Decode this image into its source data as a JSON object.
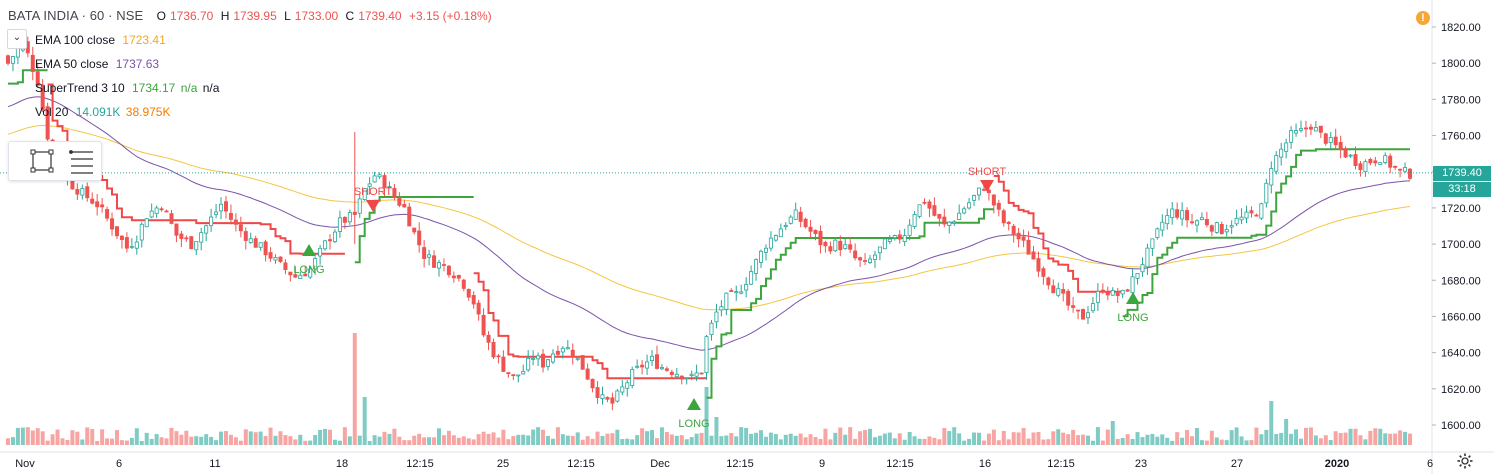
{
  "header": {
    "symbol": "BATA INDIA · 60 · NSE",
    "open_label": "O",
    "open": "1736.70",
    "high_label": "H",
    "high": "1739.95",
    "low_label": "L",
    "low": "1733.00",
    "close_label": "C",
    "close": "1739.40",
    "change": "+3.15 (+0.18%)"
  },
  "indicators": [
    {
      "name": "EMA 100 close",
      "value": "1723.41",
      "color": "#f5a623"
    },
    {
      "name": "EMA 50 close",
      "value": "1737.63",
      "color": "#7b52ab"
    },
    {
      "name": "SuperTrend 3 10",
      "value": "1734.17",
      "extra1": "n/a",
      "extra2": "n/a",
      "color": "#3da53d"
    },
    {
      "name": "Vol 20",
      "value": "14.091K",
      "extra1": "38.975K",
      "color": "#26a69a",
      "color2": "#f57c00"
    }
  ],
  "price_tag": {
    "value": "1739.40",
    "countdown": "33:18"
  },
  "colors": {
    "up": "#26a69a",
    "down": "#ef5350",
    "candle_up_fill": "#ffffff",
    "supertrend_up": "#3da53d",
    "supertrend_down": "#f04848",
    "ema100": "#f5c542",
    "ema50": "#7b52ab",
    "vol_up": "#80cbc4",
    "vol_down": "#f6a5a2"
  },
  "chart_data": {
    "type": "candlestick",
    "yticks": [
      "1820.00",
      "1800.00",
      "1780.00",
      "1760.00",
      "1740.00",
      "1720.00",
      "1700.00",
      "1680.00",
      "1660.00",
      "1640.00",
      "1620.00",
      "1600.00"
    ],
    "ytick_values": [
      1820,
      1800,
      1780,
      1760,
      1740,
      1720,
      1700,
      1680,
      1660,
      1640,
      1620,
      1600
    ],
    "ylim": [
      1590,
      1829
    ],
    "xticks": [
      "Nov",
      "6",
      "11",
      "18",
      "12:15",
      "25",
      "12:15",
      "Dec",
      "12:15",
      "9",
      "12:15",
      "16",
      "12:15",
      "23",
      "27",
      "2020",
      "6"
    ],
    "last_price": 1739.4,
    "signals": [
      {
        "type": "LONG",
        "direction": "up"
      },
      {
        "type": "SHORT",
        "direction": "down"
      },
      {
        "type": "LONG",
        "direction": "up"
      },
      {
        "type": "SHORT",
        "direction": "down"
      },
      {
        "type": "LONG",
        "direction": "up"
      }
    ],
    "series_close": [
      [
        0,
        1800
      ],
      [
        3,
        1812
      ],
      [
        6,
        1790
      ],
      [
        8,
        1760
      ],
      [
        10,
        1750
      ],
      [
        12,
        1735
      ],
      [
        15,
        1728
      ],
      [
        18,
        1722
      ],
      [
        21,
        1710
      ],
      [
        24,
        1698
      ],
      [
        26,
        1704
      ],
      [
        28,
        1716
      ],
      [
        31,
        1722
      ],
      [
        34,
        1705
      ],
      [
        37,
        1700
      ],
      [
        40,
        1710
      ],
      [
        43,
        1722
      ],
      [
        46,
        1710
      ],
      [
        49,
        1702
      ],
      [
        52,
        1696
      ],
      [
        55,
        1688
      ],
      [
        58,
        1682
      ],
      [
        61,
        1686
      ],
      [
        64,
        1700
      ],
      [
        67,
        1712
      ],
      [
        70,
        1716
      ],
      [
        72,
        1730
      ],
      [
        74,
        1738
      ],
      [
        76,
        1734
      ],
      [
        78,
        1726
      ],
      [
        80,
        1720
      ],
      [
        82,
        1706
      ],
      [
        84,
        1694
      ],
      [
        86,
        1690
      ],
      [
        88,
        1688
      ],
      [
        90,
        1684
      ],
      [
        92,
        1678
      ],
      [
        94,
        1668
      ],
      [
        96,
        1650
      ],
      [
        98,
        1640
      ],
      [
        100,
        1632
      ],
      [
        102,
        1626
      ],
      [
        104,
        1630
      ],
      [
        106,
        1638
      ],
      [
        108,
        1634
      ],
      [
        110,
        1640
      ],
      [
        112,
        1644
      ],
      [
        114,
        1640
      ],
      [
        116,
        1632
      ],
      [
        118,
        1622
      ],
      [
        120,
        1614
      ],
      [
        122,
        1612
      ],
      [
        124,
        1620
      ],
      [
        126,
        1628
      ],
      [
        128,
        1633
      ],
      [
        130,
        1636
      ],
      [
        132,
        1632
      ],
      [
        134,
        1630
      ],
      [
        136,
        1628
      ],
      [
        138,
        1626
      ],
      [
        140,
        1630
      ],
      [
        141,
        1648
      ],
      [
        143,
        1662
      ],
      [
        145,
        1670
      ],
      [
        147,
        1672
      ],
      [
        149,
        1680
      ],
      [
        151,
        1690
      ],
      [
        153,
        1700
      ],
      [
        155,
        1706
      ],
      [
        157,
        1712
      ],
      [
        159,
        1716
      ],
      [
        161,
        1710
      ],
      [
        163,
        1704
      ],
      [
        165,
        1698
      ],
      [
        167,
        1700
      ],
      [
        169,
        1698
      ],
      [
        171,
        1692
      ],
      [
        173,
        1688
      ],
      [
        175,
        1694
      ],
      [
        177,
        1700
      ],
      [
        179,
        1702
      ],
      [
        181,
        1706
      ],
      [
        183,
        1718
      ],
      [
        185,
        1724
      ],
      [
        187,
        1716
      ],
      [
        189,
        1710
      ],
      [
        191,
        1714
      ],
      [
        193,
        1720
      ],
      [
        195,
        1726
      ],
      [
        197,
        1732
      ],
      [
        199,
        1722
      ],
      [
        201,
        1712
      ],
      [
        203,
        1706
      ],
      [
        205,
        1700
      ],
      [
        207,
        1692
      ],
      [
        209,
        1684
      ],
      [
        211,
        1676
      ],
      [
        213,
        1670
      ],
      [
        215,
        1662
      ],
      [
        217,
        1660
      ],
      [
        219,
        1668
      ],
      [
        221,
        1676
      ],
      [
        223,
        1672
      ],
      [
        225,
        1672
      ],
      [
        227,
        1680
      ],
      [
        229,
        1690
      ],
      [
        231,
        1700
      ],
      [
        233,
        1712
      ],
      [
        235,
        1718
      ],
      [
        237,
        1716
      ],
      [
        239,
        1712
      ],
      [
        241,
        1714
      ],
      [
        243,
        1710
      ],
      [
        245,
        1708
      ],
      [
        247,
        1712
      ],
      [
        249,
        1714
      ],
      [
        251,
        1716
      ],
      [
        253,
        1720
      ],
      [
        255,
        1744
      ],
      [
        257,
        1752
      ],
      [
        259,
        1760
      ],
      [
        261,
        1762
      ],
      [
        263,
        1766
      ],
      [
        265,
        1760
      ],
      [
        267,
        1756
      ],
      [
        269,
        1752
      ],
      [
        271,
        1748
      ],
      [
        273,
        1744
      ],
      [
        275,
        1746
      ],
      [
        277,
        1748
      ],
      [
        279,
        1744
      ],
      [
        281,
        1740
      ],
      [
        283,
        1739
      ]
    ]
  }
}
